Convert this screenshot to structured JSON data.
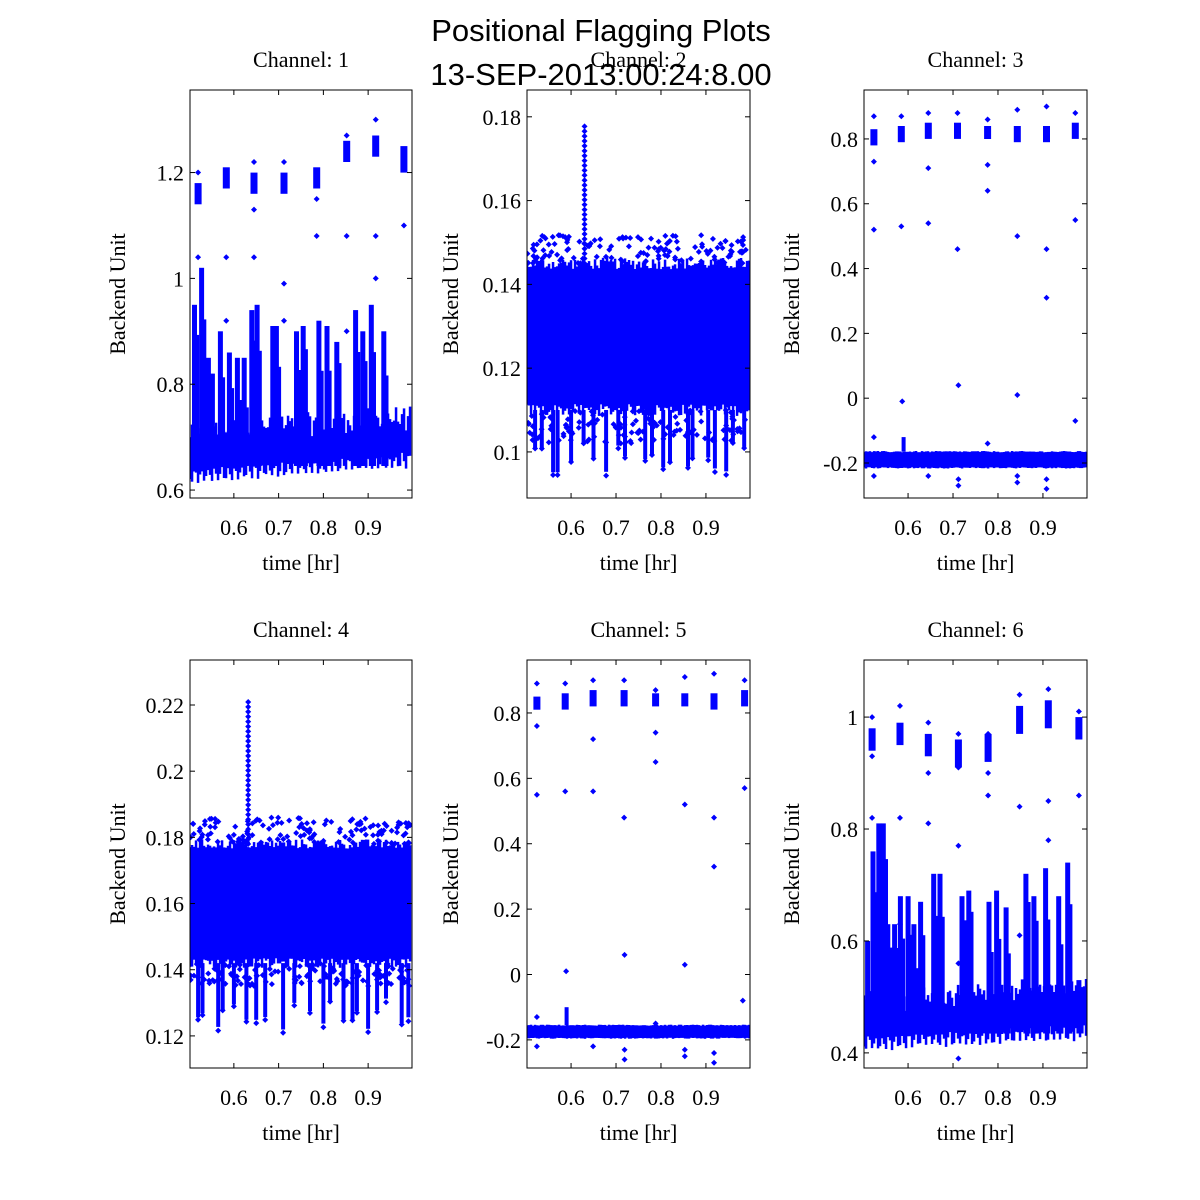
{
  "figure": {
    "title_line1": "Positional Flagging Plots",
    "title_line2": "13-SEP-2013:00:24:8.00",
    "marker_color": "#0000ff"
  },
  "chart_data": [
    {
      "type": "scatter",
      "title": "Channel: 1",
      "xlabel": "time [hr]",
      "ylabel": "Backend Unit",
      "xlim": [
        0.502,
        0.998
      ],
      "ylim": [
        0.585,
        1.356
      ],
      "xticks": [
        0.6,
        0.7,
        0.8,
        0.9
      ],
      "xtick_labels": [
        "0.6",
        "0.7",
        "0.8",
        "0.9"
      ],
      "yticks": [
        0.6,
        0.8,
        1.0,
        1.2
      ],
      "ytick_labels": [
        "0.6",
        "0.8",
        "1",
        "1.2"
      ],
      "grid": false,
      "baseline": {
        "start": [
          0.63,
          0.77
        ],
        "end": [
          0.66,
          0.8
        ]
      },
      "spikes": [
        {
          "x": 0.512,
          "y": 0.95
        },
        {
          "x": 0.528,
          "y": 1.02
        },
        {
          "x": 0.543,
          "y": 0.85
        },
        {
          "x": 0.552,
          "y": 0.82
        },
        {
          "x": 0.57,
          "y": 0.9
        },
        {
          "x": 0.59,
          "y": 0.86
        },
        {
          "x": 0.608,
          "y": 0.85
        },
        {
          "x": 0.623,
          "y": 0.85
        },
        {
          "x": 0.64,
          "y": 0.94
        },
        {
          "x": 0.652,
          "y": 0.95
        },
        {
          "x": 0.687,
          "y": 0.91
        },
        {
          "x": 0.695,
          "y": 0.91
        },
        {
          "x": 0.74,
          "y": 0.9
        },
        {
          "x": 0.755,
          "y": 0.91
        },
        {
          "x": 0.79,
          "y": 0.92
        },
        {
          "x": 0.808,
          "y": 0.91
        },
        {
          "x": 0.83,
          "y": 0.88
        },
        {
          "x": 0.872,
          "y": 0.94
        },
        {
          "x": 0.888,
          "y": 0.9
        },
        {
          "x": 0.907,
          "y": 0.95
        },
        {
          "x": 0.935,
          "y": 0.9
        }
      ],
      "clusters": [
        {
          "x": 0.52,
          "y": [
            1.14,
            1.18
          ]
        },
        {
          "x": 0.583,
          "y": [
            1.17,
            1.21
          ]
        },
        {
          "x": 0.645,
          "y": [
            1.16,
            1.2
          ]
        },
        {
          "x": 0.712,
          "y": [
            1.16,
            1.2
          ]
        },
        {
          "x": 0.785,
          "y": [
            1.17,
            1.21
          ]
        },
        {
          "x": 0.852,
          "y": [
            1.22,
            1.26
          ]
        },
        {
          "x": 0.917,
          "y": [
            1.23,
            1.27
          ]
        },
        {
          "x": 0.98,
          "y": [
            1.2,
            1.25
          ]
        }
      ],
      "outliers": [
        [
          0.52,
          1.04
        ],
        [
          0.583,
          1.04
        ],
        [
          0.645,
          1.04
        ],
        [
          0.712,
          0.99
        ],
        [
          0.785,
          1.08
        ],
        [
          0.852,
          1.08
        ],
        [
          0.917,
          1.08
        ],
        [
          0.98,
          1.1
        ],
        [
          0.583,
          0.92
        ],
        [
          0.712,
          0.92
        ],
        [
          0.52,
          1.2
        ],
        [
          0.645,
          1.22
        ],
        [
          0.712,
          1.22
        ],
        [
          0.852,
          1.27
        ],
        [
          0.917,
          1.3
        ],
        [
          0.917,
          1.0
        ],
        [
          0.852,
          0.9
        ],
        [
          0.645,
          1.13
        ],
        [
          0.785,
          1.15
        ]
      ]
    },
    {
      "type": "scatter",
      "title": "Channel: 2",
      "xlabel": "time [hr]",
      "ylabel": "Backend Unit",
      "xlim": [
        0.502,
        0.998
      ],
      "ylim": [
        0.089,
        0.1864
      ],
      "xticks": [
        0.6,
        0.7,
        0.8,
        0.9
      ],
      "xtick_labels": [
        "0.6",
        "0.7",
        "0.8",
        "0.9"
      ],
      "yticks": [
        0.1,
        0.12,
        0.14,
        0.16,
        0.18
      ],
      "ytick_labels": [
        "0.1",
        "0.12",
        "0.14",
        "0.16",
        "0.18"
      ],
      "grid": false,
      "band": [
        0.11,
        0.145
      ],
      "band_fuzz": [
        0.102,
        0.152
      ],
      "spikes": [
        {
          "x": 0.63,
          "y": 0.178
        }
      ],
      "low_spikes": [
        0.52,
        0.535,
        0.56,
        0.57,
        0.6,
        0.628,
        0.65,
        0.678,
        0.705,
        0.72,
        0.765,
        0.78,
        0.805,
        0.82,
        0.86,
        0.87,
        0.905,
        0.92,
        0.945,
        0.96,
        0.985
      ],
      "low_spike_min": 0.095
    },
    {
      "type": "scatter",
      "title": "Channel: 3",
      "xlabel": "time [hr]",
      "ylabel": "Backend Unit",
      "xlim": [
        0.502,
        0.998
      ],
      "ylim": [
        -0.308,
        0.951
      ],
      "xticks": [
        0.6,
        0.7,
        0.8,
        0.9
      ],
      "xtick_labels": [
        "0.6",
        "0.7",
        "0.8",
        "0.9"
      ],
      "yticks": [
        -0.2,
        0.0,
        0.2,
        0.4,
        0.6,
        0.8
      ],
      "ytick_labels": [
        "-0.2",
        "0",
        "0.2",
        "0.4",
        "0.6",
        "0.8"
      ],
      "grid": false,
      "band": [
        -0.215,
        -0.165
      ],
      "clusters": [
        {
          "x": 0.524,
          "y": [
            0.78,
            0.83
          ]
        },
        {
          "x": 0.585,
          "y": [
            0.79,
            0.84
          ]
        },
        {
          "x": 0.645,
          "y": [
            0.8,
            0.85
          ]
        },
        {
          "x": 0.71,
          "y": [
            0.8,
            0.85
          ]
        },
        {
          "x": 0.777,
          "y": [
            0.8,
            0.84
          ]
        },
        {
          "x": 0.843,
          "y": [
            0.79,
            0.84
          ]
        },
        {
          "x": 0.908,
          "y": [
            0.79,
            0.84
          ]
        },
        {
          "x": 0.972,
          "y": [
            0.8,
            0.85
          ]
        }
      ],
      "outliers": [
        [
          0.524,
          0.87
        ],
        [
          0.585,
          0.87
        ],
        [
          0.645,
          0.88
        ],
        [
          0.71,
          0.88
        ],
        [
          0.777,
          0.86
        ],
        [
          0.843,
          0.89
        ],
        [
          0.908,
          0.9
        ],
        [
          0.972,
          0.88
        ],
        [
          0.524,
          0.73
        ],
        [
          0.645,
          0.71
        ],
        [
          0.777,
          0.72
        ],
        [
          0.777,
          0.64
        ],
        [
          0.524,
          0.52
        ],
        [
          0.585,
          0.53
        ],
        [
          0.645,
          0.54
        ],
        [
          0.71,
          0.46
        ],
        [
          0.843,
          0.5
        ],
        [
          0.908,
          0.46
        ],
        [
          0.908,
          0.31
        ],
        [
          0.972,
          0.55
        ],
        [
          0.587,
          -0.01
        ],
        [
          0.712,
          0.04
        ],
        [
          0.843,
          0.01
        ],
        [
          0.972,
          -0.07
        ],
        [
          0.524,
          -0.12
        ],
        [
          0.777,
          -0.14
        ],
        [
          0.524,
          -0.24
        ],
        [
          0.645,
          -0.24
        ],
        [
          0.712,
          -0.25
        ],
        [
          0.712,
          -0.27
        ],
        [
          0.843,
          -0.24
        ],
        [
          0.843,
          -0.26
        ],
        [
          0.908,
          -0.25
        ],
        [
          0.908,
          -0.28
        ]
      ],
      "bump": {
        "x": 0.59,
        "y": -0.12
      }
    },
    {
      "type": "scatter",
      "title": "Channel: 4",
      "xlabel": "time [hr]",
      "ylabel": "Backend Unit",
      "xlim": [
        0.502,
        0.998
      ],
      "ylim": [
        0.1103,
        0.2336
      ],
      "xticks": [
        0.6,
        0.7,
        0.8,
        0.9
      ],
      "xtick_labels": [
        "0.6",
        "0.7",
        "0.8",
        "0.9"
      ],
      "yticks": [
        0.12,
        0.14,
        0.16,
        0.18,
        0.2,
        0.22
      ],
      "ytick_labels": [
        "0.12",
        "0.14",
        "0.16",
        "0.18",
        "0.2",
        "0.22"
      ],
      "grid": false,
      "band": [
        0.142,
        0.178
      ],
      "band_fuzz": [
        0.135,
        0.186
      ],
      "spikes": [
        {
          "x": 0.632,
          "y": 0.222
        }
      ],
      "low_spikes": [
        0.52,
        0.53,
        0.565,
        0.575,
        0.6,
        0.628,
        0.65,
        0.67,
        0.71,
        0.735,
        0.77,
        0.8,
        0.815,
        0.845,
        0.865,
        0.875,
        0.9,
        0.92,
        0.94,
        0.975,
        0.99
      ],
      "low_spike_min": 0.121
    },
    {
      "type": "scatter",
      "title": "Channel: 5",
      "xlabel": "time [hr]",
      "ylabel": "Backend Unit",
      "xlim": [
        0.502,
        0.998
      ],
      "ylim": [
        -0.286,
        0.962
      ],
      "xticks": [
        0.6,
        0.7,
        0.8,
        0.9
      ],
      "xtick_labels": [
        "0.6",
        "0.7",
        "0.8",
        "0.9"
      ],
      "yticks": [
        -0.2,
        0.0,
        0.2,
        0.4,
        0.6,
        0.8
      ],
      "ytick_labels": [
        "-0.2",
        "0",
        "0.2",
        "0.4",
        "0.6",
        "0.8"
      ],
      "grid": false,
      "band": [
        -0.195,
        -0.155
      ],
      "clusters": [
        {
          "x": 0.524,
          "y": [
            0.81,
            0.85
          ]
        },
        {
          "x": 0.587,
          "y": [
            0.81,
            0.86
          ]
        },
        {
          "x": 0.649,
          "y": [
            0.82,
            0.87
          ]
        },
        {
          "x": 0.718,
          "y": [
            0.82,
            0.87
          ]
        },
        {
          "x": 0.788,
          "y": [
            0.82,
            0.86
          ]
        },
        {
          "x": 0.853,
          "y": [
            0.82,
            0.86
          ]
        },
        {
          "x": 0.918,
          "y": [
            0.81,
            0.86
          ]
        },
        {
          "x": 0.986,
          "y": [
            0.82,
            0.87
          ]
        }
      ],
      "outliers": [
        [
          0.524,
          0.89
        ],
        [
          0.587,
          0.89
        ],
        [
          0.649,
          0.9
        ],
        [
          0.718,
          0.9
        ],
        [
          0.788,
          0.87
        ],
        [
          0.853,
          0.91
        ],
        [
          0.918,
          0.92
        ],
        [
          0.986,
          0.9
        ],
        [
          0.524,
          0.76
        ],
        [
          0.649,
          0.72
        ],
        [
          0.788,
          0.74
        ],
        [
          0.788,
          0.65
        ],
        [
          0.524,
          0.55
        ],
        [
          0.587,
          0.56
        ],
        [
          0.649,
          0.56
        ],
        [
          0.718,
          0.48
        ],
        [
          0.853,
          0.52
        ],
        [
          0.918,
          0.48
        ],
        [
          0.918,
          0.33
        ],
        [
          0.986,
          0.57
        ],
        [
          0.589,
          0.01
        ],
        [
          0.719,
          0.06
        ],
        [
          0.853,
          0.03
        ],
        [
          0.982,
          -0.08
        ],
        [
          0.524,
          -0.13
        ],
        [
          0.788,
          -0.15
        ],
        [
          0.524,
          -0.22
        ],
        [
          0.649,
          -0.22
        ],
        [
          0.719,
          -0.23
        ],
        [
          0.719,
          -0.26
        ],
        [
          0.853,
          -0.23
        ],
        [
          0.853,
          -0.25
        ],
        [
          0.918,
          -0.24
        ],
        [
          0.918,
          -0.27
        ]
      ],
      "bump": {
        "x": 0.59,
        "y": -0.1
      }
    },
    {
      "type": "scatter",
      "title": "Channel: 6",
      "xlabel": "time [hr]",
      "ylabel": "Backend Unit",
      "xlim": [
        0.502,
        0.998
      ],
      "ylim": [
        0.373,
        1.102
      ],
      "xticks": [
        0.6,
        0.7,
        0.8,
        0.9
      ],
      "xtick_labels": [
        "0.6",
        "0.7",
        "0.8",
        "0.9"
      ],
      "yticks": [
        0.4,
        0.6,
        0.8,
        1.0
      ],
      "ytick_labels": [
        "0.4",
        "0.6",
        "0.8",
        "1"
      ],
      "grid": false,
      "baseline": {
        "start": [
          0.42,
          0.55
        ],
        "end": [
          0.44,
          0.58
        ]
      },
      "spikes": [
        {
          "x": 0.51,
          "y": 0.6
        },
        {
          "x": 0.522,
          "y": 0.76
        },
        {
          "x": 0.535,
          "y": 0.81
        },
        {
          "x": 0.545,
          "y": 0.81
        },
        {
          "x": 0.555,
          "y": 0.63
        },
        {
          "x": 0.57,
          "y": 0.63
        },
        {
          "x": 0.583,
          "y": 0.68
        },
        {
          "x": 0.6,
          "y": 0.68
        },
        {
          "x": 0.613,
          "y": 0.63
        },
        {
          "x": 0.628,
          "y": 0.67
        },
        {
          "x": 0.657,
          "y": 0.72
        },
        {
          "x": 0.671,
          "y": 0.72
        },
        {
          "x": 0.72,
          "y": 0.68
        },
        {
          "x": 0.735,
          "y": 0.69
        },
        {
          "x": 0.78,
          "y": 0.67
        },
        {
          "x": 0.797,
          "y": 0.69
        },
        {
          "x": 0.818,
          "y": 0.66
        },
        {
          "x": 0.862,
          "y": 0.72
        },
        {
          "x": 0.88,
          "y": 0.68
        },
        {
          "x": 0.906,
          "y": 0.73
        },
        {
          "x": 0.935,
          "y": 0.68
        },
        {
          "x": 0.955,
          "y": 0.74
        },
        {
          "x": 0.98,
          "y": 0.53
        }
      ],
      "clusters": [
        {
          "x": 0.52,
          "y": [
            0.94,
            0.98
          ]
        },
        {
          "x": 0.582,
          "y": [
            0.95,
            0.99
          ]
        },
        {
          "x": 0.645,
          "y": [
            0.93,
            0.97
          ]
        },
        {
          "x": 0.712,
          "y": [
            0.91,
            0.96
          ]
        },
        {
          "x": 0.778,
          "y": [
            0.92,
            0.97
          ]
        },
        {
          "x": 0.848,
          "y": [
            0.97,
            1.02
          ]
        },
        {
          "x": 0.912,
          "y": [
            0.98,
            1.03
          ]
        },
        {
          "x": 0.98,
          "y": [
            0.96,
            1.0
          ]
        }
      ],
      "outliers": [
        [
          0.52,
          1.0
        ],
        [
          0.582,
          1.02
        ],
        [
          0.645,
          0.99
        ],
        [
          0.712,
          0.97
        ],
        [
          0.778,
          0.97
        ],
        [
          0.848,
          1.04
        ],
        [
          0.912,
          1.05
        ],
        [
          0.98,
          1.01
        ],
        [
          0.52,
          0.93
        ],
        [
          0.645,
          0.9
        ],
        [
          0.712,
          0.91
        ],
        [
          0.778,
          0.9
        ],
        [
          0.52,
          0.82
        ],
        [
          0.582,
          0.82
        ],
        [
          0.645,
          0.81
        ],
        [
          0.712,
          0.77
        ],
        [
          0.778,
          0.86
        ],
        [
          0.848,
          0.84
        ],
        [
          0.912,
          0.85
        ],
        [
          0.912,
          0.78
        ],
        [
          0.98,
          0.86
        ],
        [
          0.582,
          0.63
        ],
        [
          0.712,
          0.56
        ],
        [
          0.848,
          0.61
        ],
        [
          0.712,
          0.39
        ]
      ]
    }
  ]
}
